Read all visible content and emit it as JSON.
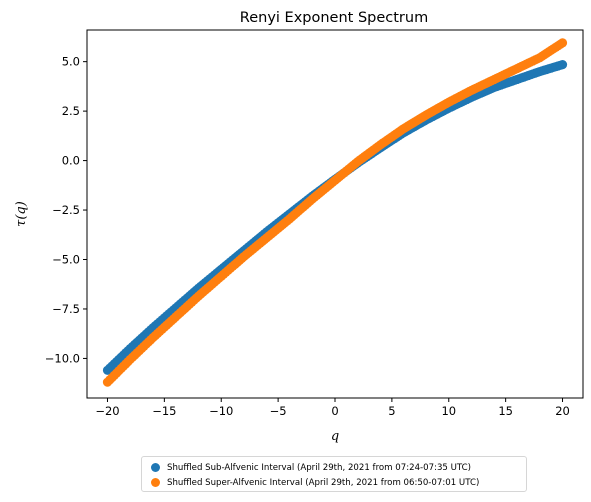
{
  "chart_data": {
    "type": "scatter",
    "title": "Renyi Exponent Spectrum",
    "xlabel": "q",
    "ylabel": "τ(q)",
    "xlim": [
      -21.8,
      21.8
    ],
    "ylim": [
      -12.0,
      6.6
    ],
    "xticks": [
      -20,
      -15,
      -10,
      -5,
      0,
      5,
      10,
      15,
      20
    ],
    "xtick_labels": [
      "−20",
      "−15",
      "−10",
      "−5",
      "0",
      "5",
      "10",
      "15",
      "20"
    ],
    "yticks": [
      -10.0,
      -7.5,
      -5.0,
      -2.5,
      0.0,
      2.5,
      5.0
    ],
    "ytick_labels": [
      "−10.0",
      "−7.5",
      "−5.0",
      "−2.5",
      "0.0",
      "2.5",
      "5.0"
    ],
    "grid": false,
    "legend_placement": "below",
    "x": [
      -20,
      -18,
      -16,
      -14,
      -12,
      -10,
      -8,
      -6,
      -4,
      -2,
      0,
      2,
      4,
      6,
      8,
      10,
      12,
      14,
      16,
      18,
      20
    ],
    "series": [
      {
        "name": "Shuffled Sub-Alfvenic Interval (April 29th, 2021 from 07:24-07:35 UTC)",
        "color": "#1f77b4",
        "values": [
          -10.6,
          -9.5,
          -8.45,
          -7.45,
          -6.45,
          -5.5,
          -4.55,
          -3.6,
          -2.7,
          -1.8,
          -0.95,
          -0.12,
          0.65,
          1.4,
          2.05,
          2.65,
          3.2,
          3.7,
          4.1,
          4.5,
          4.85
        ]
      },
      {
        "name": "Shuffled Super-Alfvenic Interval (April 29th, 2021 from 06:50-07:01 UTC)",
        "color": "#ff7f0e",
        "values": [
          -11.2,
          -10.05,
          -8.95,
          -7.9,
          -6.85,
          -5.85,
          -4.85,
          -3.9,
          -2.95,
          -1.95,
          -1.0,
          -0.05,
          0.8,
          1.6,
          2.3,
          2.95,
          3.55,
          4.1,
          4.65,
          5.2,
          5.95
        ]
      }
    ]
  },
  "legend": {
    "items": [
      {
        "label": "Shuffled Sub-Alfvenic Interval (April 29th, 2021 from 07:24-07:35 UTC)",
        "color": "#1f77b4"
      },
      {
        "label": "Shuffled Super-Alfvenic Interval (April 29th, 2021 from 06:50-07:01 UTC)",
        "color": "#ff7f0e"
      }
    ]
  }
}
